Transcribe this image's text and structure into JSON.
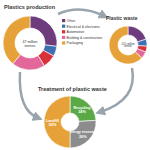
{
  "chart_data": [
    {
      "type": "pie",
      "title": "Plastics production",
      "annotation": "47 million tonnes",
      "categories": [
        "Other",
        "Electrical & electronic",
        "Automotive",
        "Building & construction",
        "Packaging"
      ],
      "values": [
        27,
        6,
        8,
        20,
        39
      ],
      "colors": [
        "#6e3b7d",
        "#3d6fb3",
        "#d7323a",
        "#e2679a",
        "#e6a238"
      ],
      "legend": "right"
    },
    {
      "type": "pie",
      "title": "Plastic waste",
      "annotation": "24.5 million tonnes",
      "categories": [
        "Other",
        "Electrical & electronic",
        "Automotive",
        "Building & construction",
        "Packaging"
      ],
      "values": [
        20,
        6,
        5,
        6,
        63
      ],
      "colors": [
        "#6e3b7d",
        "#3d6fb3",
        "#d7323a",
        "#e2679a",
        "#e6a238"
      ]
    },
    {
      "type": "pie",
      "title": "Treatment of plastic waste",
      "categories": [
        "Recycling",
        "Energy recovery",
        "Landfill"
      ],
      "values": [
        24,
        26,
        50
      ],
      "value_labels": [
        "24%",
        "26%",
        "50%"
      ],
      "colors": [
        "#5aa846",
        "#8c8c8c",
        "#e6a238"
      ],
      "data_labels": true
    }
  ]
}
